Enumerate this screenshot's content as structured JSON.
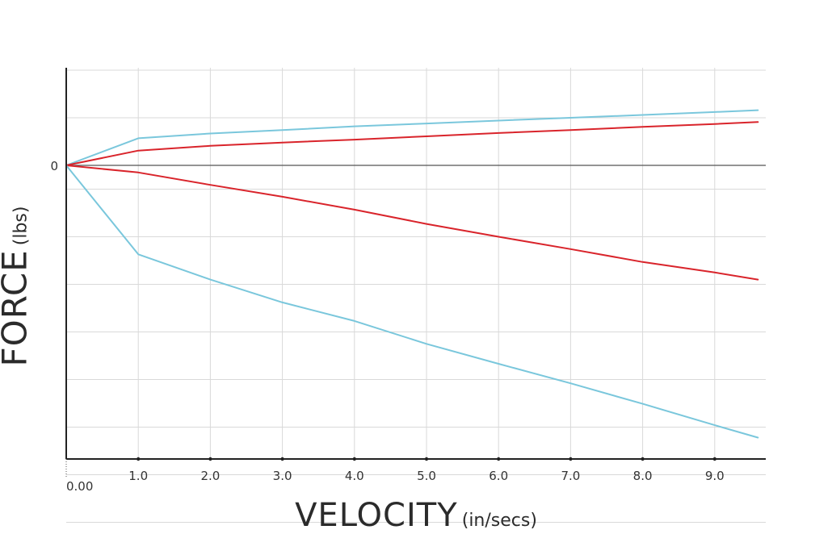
{
  "chart_data": {
    "type": "line",
    "xlabel": "VELOCITY",
    "xlabel_unit": "(in/secs)",
    "ylabel": "FORCE",
    "ylabel_unit": "(lbs)",
    "x_origin_label": "0.00",
    "y_zero_label": "0",
    "xlim": [
      0,
      9.6
    ],
    "ylim": [
      -8,
      2
    ],
    "x_ticks": [
      1,
      2,
      3,
      4,
      5,
      6,
      7,
      8,
      9
    ],
    "x_tick_labels": [
      "1.0",
      "2.0",
      "3.0",
      "4.0",
      "5.0",
      "6.0",
      "7.0",
      "8.0",
      "9.0"
    ],
    "y_grid": [
      -7.5,
      -6.5,
      -5.5,
      -4.5,
      -3.5,
      -2.5,
      -1.5,
      -0.5,
      0,
      1,
      2
    ],
    "grid": true,
    "x": [
      0,
      1,
      2,
      3,
      4,
      5,
      6,
      7,
      8,
      9,
      9.6
    ],
    "series": [
      {
        "color": "#7ac7dc",
        "values": [
          0,
          0.57,
          0.67,
          0.74,
          0.82,
          0.88,
          0.94,
          1.0,
          1.06,
          1.12,
          1.16
        ]
      },
      {
        "color": "#d9242b",
        "values": [
          0,
          0.31,
          0.41,
          0.48,
          0.54,
          0.61,
          0.68,
          0.74,
          0.81,
          0.87,
          0.91
        ]
      },
      {
        "color": "#d9242b",
        "values": [
          0,
          -0.15,
          -0.41,
          -0.66,
          -0.93,
          -1.23,
          -1.5,
          -1.76,
          -2.03,
          -2.25,
          -2.4
        ]
      },
      {
        "color": "#7ac7dc",
        "values": [
          0,
          -1.87,
          -2.4,
          -2.88,
          -3.27,
          -3.75,
          -4.17,
          -4.58,
          -5.01,
          -5.46,
          -5.72
        ]
      }
    ]
  }
}
